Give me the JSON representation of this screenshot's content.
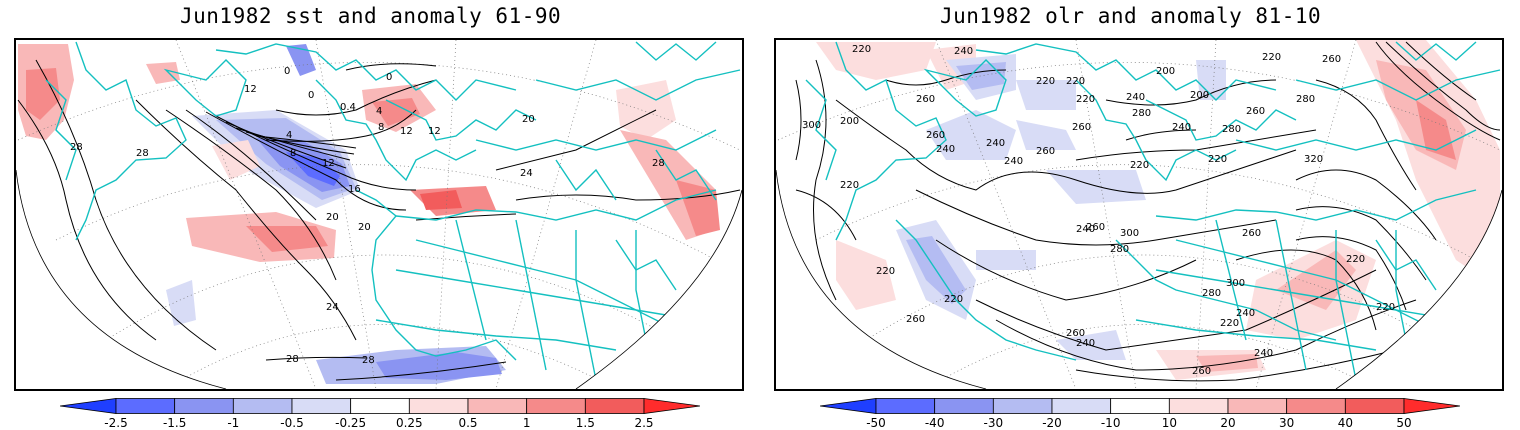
{
  "panels": [
    {
      "id": "sst",
      "title": "Jun1982 sst and anomaly 61-90",
      "colorbar": {
        "labels": [
          "-2.5",
          "-1.5",
          "-1",
          "-0.5",
          "-0.25",
          "0.25",
          "0.5",
          "1",
          "1.5",
          "2.5"
        ],
        "colors": [
          "#1f3fff",
          "#5c6cff",
          "#8a94f2",
          "#b4bcf2",
          "#d8dcf6",
          "#ffffff",
          "#fcdede",
          "#f9b8b8",
          "#f58a8a",
          "#f25c5c",
          "#ff2c2c"
        ]
      },
      "contour_labels": [
        "0",
        "0",
        "0",
        "4",
        "0.4",
        "8",
        "12",
        "12",
        "12",
        "16",
        "8",
        "4",
        "12",
        "20",
        "20",
        "20",
        "24",
        "24",
        "28",
        "28",
        "28",
        "28",
        "28"
      ]
    },
    {
      "id": "olr",
      "title": "Jun1982 olr and anomaly 81-10",
      "colorbar": {
        "labels": [
          "-50",
          "-40",
          "-30",
          "-20",
          "-10",
          "10",
          "20",
          "30",
          "40",
          "50"
        ],
        "colors": [
          "#1f3fff",
          "#5c6cff",
          "#8a94f2",
          "#b4bcf2",
          "#d8dcf6",
          "#ffffff",
          "#fcdede",
          "#f9b8b8",
          "#f58a8a",
          "#f25c5c",
          "#ff2c2c"
        ]
      },
      "contour_labels": [
        "220",
        "240",
        "260",
        "260",
        "220",
        "220",
        "200",
        "220",
        "240",
        "260",
        "280",
        "300",
        "200",
        "220",
        "240",
        "260",
        "240",
        "260",
        "280",
        "200",
        "220",
        "240",
        "240",
        "220",
        "220",
        "240",
        "260",
        "280",
        "320",
        "260",
        "280",
        "300",
        "260",
        "280",
        "300",
        "240",
        "220",
        "240",
        "220",
        "220",
        "260",
        "260",
        "240",
        "260",
        "220",
        "220"
      ]
    }
  ]
}
